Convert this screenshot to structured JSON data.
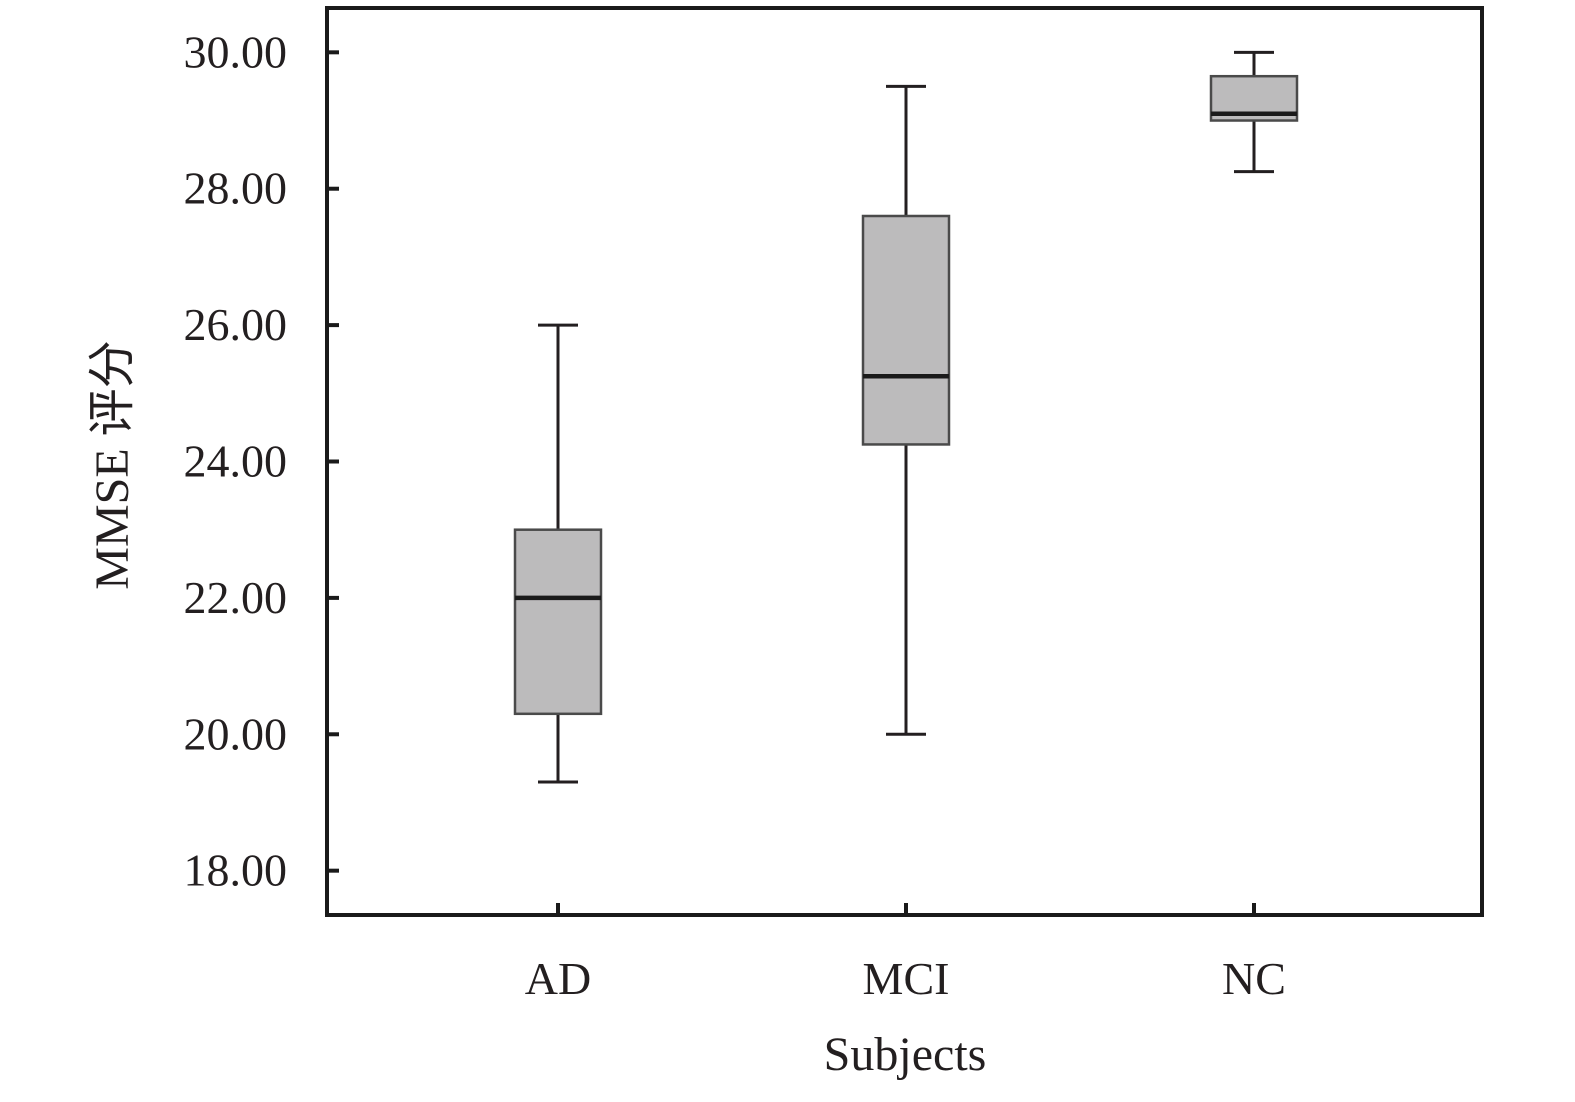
{
  "chart_data": {
    "type": "box",
    "title": "",
    "xlabel": "Subjects",
    "ylabel": "MMSE 评分",
    "categories": [
      "AD",
      "MCI",
      "NC"
    ],
    "y_ticks": [
      "18.00",
      "20.00",
      "22.00",
      "24.00",
      "26.00",
      "28.00",
      "30.00"
    ],
    "ylim": [
      17.35,
      30.65
    ],
    "grid": false,
    "legend": "none",
    "boxes": [
      {
        "category": "AD",
        "min": 19.3,
        "q1": 20.3,
        "median": 22.0,
        "q3": 23.0,
        "max": 26.0
      },
      {
        "category": "MCI",
        "min": 20.0,
        "q1": 24.25,
        "median": 25.25,
        "q3": 27.6,
        "max": 29.5
      },
      {
        "category": "NC",
        "min": 28.25,
        "q1": 29.0,
        "median": 29.1,
        "q3": 29.65,
        "max": 30.0
      }
    ],
    "colors": {
      "box_fill": "#bcbbbc",
      "box_stroke": "#4a4a4a",
      "median": "#1a1a1a",
      "whisker": "#231f20",
      "axis": "#1a1a1a",
      "text": "#231f20"
    }
  }
}
